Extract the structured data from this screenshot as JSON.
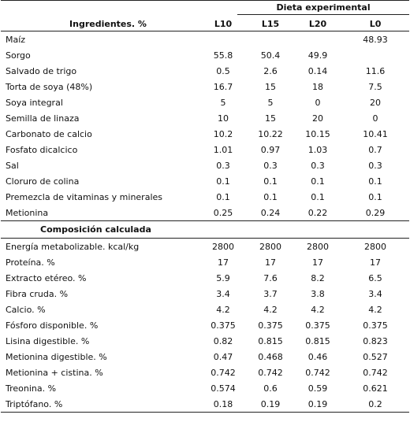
{
  "header": {
    "group_title": "Dieta experimental",
    "ingredients_title": "Ingredientes. %",
    "columns": [
      "L10",
      "L15",
      "L20",
      "L0"
    ]
  },
  "ingredients": [
    {
      "label": "Maíz",
      "values": [
        "",
        "",
        "",
        "48.93"
      ]
    },
    {
      "label": "Sorgo",
      "values": [
        "55.8",
        "50.4",
        "49.9",
        ""
      ]
    },
    {
      "label": "Salvado de trigo",
      "values": [
        "0.5",
        "2.6",
        "0.14",
        "11.6"
      ]
    },
    {
      "label": "Torta de soya (48%)",
      "values": [
        "16.7",
        "15",
        "18",
        "7.5"
      ]
    },
    {
      "label": "Soya integral",
      "values": [
        "5",
        "5",
        "0",
        "20"
      ]
    },
    {
      "label": "Semilla de linaza",
      "values": [
        "10",
        "15",
        "20",
        "0"
      ]
    },
    {
      "label": "Carbonato de calcio",
      "values": [
        "10.2",
        "10.22",
        "10.15",
        "10.41"
      ]
    },
    {
      "label": "Fosfato dicalcico",
      "values": [
        "1.01",
        "0.97",
        "1.03",
        "0.7"
      ]
    },
    {
      "label": "Sal",
      "values": [
        "0.3",
        "0.3",
        "0.3",
        "0.3"
      ]
    },
    {
      "label": "Cloruro de colina",
      "values": [
        "0.1",
        "0.1",
        "0.1",
        "0.1"
      ]
    },
    {
      "label": "Premezcla de vitaminas y minerales",
      "values": [
        "0.1",
        "0.1",
        "0.1",
        "0.1"
      ]
    },
    {
      "label": "Metionina",
      "values": [
        "0.25",
        "0.24",
        "0.22",
        "0.29"
      ]
    }
  ],
  "composition_title": "Composición calculada",
  "composition": [
    {
      "label": "Energía metabolizable. kcal/kg",
      "values": [
        "2800",
        "2800",
        "2800",
        "2800"
      ]
    },
    {
      "label": "Proteína. %",
      "values": [
        "17",
        "17",
        "17",
        "17"
      ]
    },
    {
      "label": "Extracto etéreo. %",
      "values": [
        "5.9",
        "7.6",
        "8.2",
        "6.5"
      ]
    },
    {
      "label": "Fibra cruda. %",
      "values": [
        "3.4",
        "3.7",
        "3.8",
        "3.4"
      ]
    },
    {
      "label": "Calcio. %",
      "values": [
        "4.2",
        "4.2",
        "4.2",
        "4.2"
      ]
    },
    {
      "label": "Fósforo disponible. %",
      "values": [
        "0.375",
        "0.375",
        "0.375",
        "0.375"
      ]
    },
    {
      "label": "Lisina digestible. %",
      "values": [
        "0.82",
        "0.815",
        "0.815",
        "0.823"
      ]
    },
    {
      "label": "Metionina digestible. %",
      "values": [
        "0.47",
        "0.468",
        "0.46",
        "0.527"
      ]
    },
    {
      "label": "Metionina + cistina. %",
      "values": [
        "0.742",
        "0.742",
        "0.742",
        "0.742"
      ]
    },
    {
      "label": "Treonina. %",
      "values": [
        "0.574",
        "0.6",
        "0.59",
        "0.621"
      ]
    },
    {
      "label": "Triptófano. %",
      "values": [
        "0.18",
        "0.19",
        "0.19",
        "0.2"
      ]
    }
  ]
}
